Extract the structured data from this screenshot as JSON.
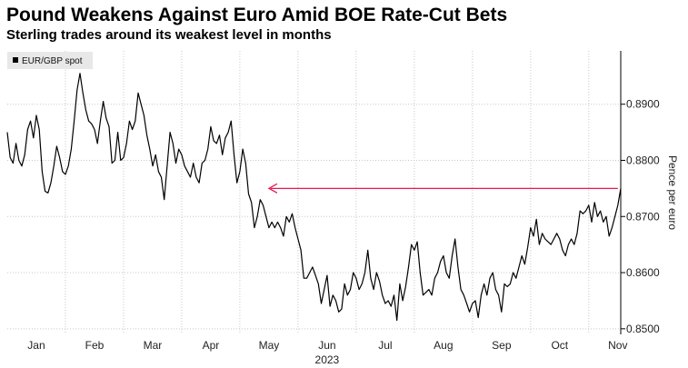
{
  "title": "Pound Weakens Against Euro Amid BOE Rate-Cut Bets",
  "subtitle": "Sterling trades around its weakest level in months",
  "chart_data": {
    "type": "line",
    "series_name": "EUR/GBP spot",
    "ylabel": "Pence per euro",
    "year_label": "2023",
    "ylim": [
      0.849,
      0.8995
    ],
    "yticks": [
      0.85,
      0.86,
      0.87,
      0.88,
      0.89
    ],
    "ytick_labels": [
      "0.8500",
      "0.8600",
      "0.8700",
      "0.8800",
      "0.8900"
    ],
    "xlim": [
      0,
      10.05
    ],
    "months": [
      "Jan",
      "Feb",
      "Mar",
      "Apr",
      "May",
      "Jun",
      "Jul",
      "Aug",
      "Sep",
      "Oct",
      "Nov"
    ],
    "colors": {
      "line": "#000000",
      "annotation_arrow": "#e8174f",
      "grid": "#c8c8c8"
    },
    "annotation": {
      "type": "arrow",
      "y": 0.875,
      "x_start": 10.0,
      "x_end": 4.0
    },
    "points": [
      [
        -0.5,
        0.885
      ],
      [
        -0.45,
        0.8805
      ],
      [
        -0.4,
        0.8795
      ],
      [
        -0.35,
        0.883
      ],
      [
        -0.3,
        0.88
      ],
      [
        -0.25,
        0.879
      ],
      [
        -0.2,
        0.881
      ],
      [
        -0.15,
        0.8855
      ],
      [
        -0.1,
        0.887
      ],
      [
        -0.05,
        0.884
      ],
      [
        0.0,
        0.888
      ],
      [
        0.05,
        0.8855
      ],
      [
        0.1,
        0.878
      ],
      [
        0.15,
        0.8745
      ],
      [
        0.2,
        0.8742
      ],
      [
        0.25,
        0.876
      ],
      [
        0.3,
        0.879
      ],
      [
        0.35,
        0.8825
      ],
      [
        0.4,
        0.8805
      ],
      [
        0.45,
        0.878
      ],
      [
        0.5,
        0.8775
      ],
      [
        0.55,
        0.879
      ],
      [
        0.6,
        0.882
      ],
      [
        0.65,
        0.887
      ],
      [
        0.7,
        0.8925
      ],
      [
        0.75,
        0.8955
      ],
      [
        0.8,
        0.892
      ],
      [
        0.85,
        0.889
      ],
      [
        0.9,
        0.887
      ],
      [
        0.95,
        0.8865
      ],
      [
        1.0,
        0.8855
      ],
      [
        1.05,
        0.883
      ],
      [
        1.1,
        0.887
      ],
      [
        1.15,
        0.8905
      ],
      [
        1.2,
        0.8875
      ],
      [
        1.25,
        0.886
      ],
      [
        1.3,
        0.8795
      ],
      [
        1.35,
        0.88
      ],
      [
        1.4,
        0.885
      ],
      [
        1.45,
        0.88
      ],
      [
        1.5,
        0.8805
      ],
      [
        1.55,
        0.883
      ],
      [
        1.6,
        0.887
      ],
      [
        1.65,
        0.8855
      ],
      [
        1.7,
        0.887
      ],
      [
        1.75,
        0.892
      ],
      [
        1.8,
        0.89
      ],
      [
        1.85,
        0.888
      ],
      [
        1.9,
        0.8845
      ],
      [
        1.95,
        0.882
      ],
      [
        2.0,
        0.879
      ],
      [
        2.05,
        0.881
      ],
      [
        2.1,
        0.878
      ],
      [
        2.15,
        0.877
      ],
      [
        2.2,
        0.873
      ],
      [
        2.25,
        0.879
      ],
      [
        2.3,
        0.885
      ],
      [
        2.35,
        0.883
      ],
      [
        2.4,
        0.8795
      ],
      [
        2.45,
        0.882
      ],
      [
        2.5,
        0.881
      ],
      [
        2.55,
        0.879
      ],
      [
        2.6,
        0.878
      ],
      [
        2.65,
        0.877
      ],
      [
        2.7,
        0.8795
      ],
      [
        2.75,
        0.877
      ],
      [
        2.8,
        0.876
      ],
      [
        2.85,
        0.8795
      ],
      [
        2.9,
        0.88
      ],
      [
        2.95,
        0.882
      ],
      [
        3.0,
        0.886
      ],
      [
        3.05,
        0.8835
      ],
      [
        3.1,
        0.883
      ],
      [
        3.15,
        0.8845
      ],
      [
        3.2,
        0.881
      ],
      [
        3.25,
        0.884
      ],
      [
        3.3,
        0.885
      ],
      [
        3.35,
        0.887
      ],
      [
        3.4,
        0.881
      ],
      [
        3.45,
        0.876
      ],
      [
        3.5,
        0.878
      ],
      [
        3.55,
        0.882
      ],
      [
        3.6,
        0.8795
      ],
      [
        3.65,
        0.874
      ],
      [
        3.7,
        0.8725
      ],
      [
        3.75,
        0.868
      ],
      [
        3.8,
        0.87
      ],
      [
        3.85,
        0.873
      ],
      [
        3.9,
        0.872
      ],
      [
        3.95,
        0.87
      ],
      [
        4.0,
        0.868
      ],
      [
        4.05,
        0.869
      ],
      [
        4.1,
        0.868
      ],
      [
        4.15,
        0.869
      ],
      [
        4.2,
        0.868
      ],
      [
        4.25,
        0.8665
      ],
      [
        4.3,
        0.87
      ],
      [
        4.35,
        0.869
      ],
      [
        4.4,
        0.8705
      ],
      [
        4.45,
        0.868
      ],
      [
        4.5,
        0.866
      ],
      [
        4.55,
        0.864
      ],
      [
        4.6,
        0.859
      ],
      [
        4.65,
        0.859
      ],
      [
        4.7,
        0.86
      ],
      [
        4.75,
        0.861
      ],
      [
        4.8,
        0.8595
      ],
      [
        4.85,
        0.858
      ],
      [
        4.9,
        0.8545
      ],
      [
        4.95,
        0.857
      ],
      [
        5.0,
        0.8595
      ],
      [
        5.05,
        0.854
      ],
      [
        5.1,
        0.856
      ],
      [
        5.15,
        0.855
      ],
      [
        5.2,
        0.853
      ],
      [
        5.25,
        0.8535
      ],
      [
        5.3,
        0.858
      ],
      [
        5.35,
        0.856
      ],
      [
        5.4,
        0.857
      ],
      [
        5.45,
        0.86
      ],
      [
        5.5,
        0.859
      ],
      [
        5.55,
        0.857
      ],
      [
        5.6,
        0.858
      ],
      [
        5.65,
        0.86
      ],
      [
        5.7,
        0.864
      ],
      [
        5.75,
        0.859
      ],
      [
        5.8,
        0.857
      ],
      [
        5.85,
        0.86
      ],
      [
        5.9,
        0.8585
      ],
      [
        5.95,
        0.856
      ],
      [
        6.0,
        0.8545
      ],
      [
        6.05,
        0.855
      ],
      [
        6.1,
        0.854
      ],
      [
        6.15,
        0.856
      ],
      [
        6.2,
        0.8515
      ],
      [
        6.25,
        0.858
      ],
      [
        6.3,
        0.855
      ],
      [
        6.35,
        0.8575
      ],
      [
        6.4,
        0.861
      ],
      [
        6.45,
        0.865
      ],
      [
        6.5,
        0.864
      ],
      [
        6.55,
        0.8655
      ],
      [
        6.6,
        0.86
      ],
      [
        6.65,
        0.856
      ],
      [
        6.7,
        0.8565
      ],
      [
        6.75,
        0.857
      ],
      [
        6.8,
        0.856
      ],
      [
        6.85,
        0.859
      ],
      [
        6.9,
        0.86
      ],
      [
        6.95,
        0.862
      ],
      [
        7.0,
        0.863
      ],
      [
        7.05,
        0.86
      ],
      [
        7.1,
        0.859
      ],
      [
        7.15,
        0.863
      ],
      [
        7.2,
        0.866
      ],
      [
        7.25,
        0.861
      ],
      [
        7.3,
        0.857
      ],
      [
        7.35,
        0.856
      ],
      [
        7.4,
        0.8545
      ],
      [
        7.45,
        0.853
      ],
      [
        7.5,
        0.8545
      ],
      [
        7.55,
        0.855
      ],
      [
        7.6,
        0.852
      ],
      [
        7.65,
        0.856
      ],
      [
        7.7,
        0.858
      ],
      [
        7.75,
        0.856
      ],
      [
        7.8,
        0.859
      ],
      [
        7.85,
        0.86
      ],
      [
        7.9,
        0.857
      ],
      [
        7.95,
        0.856
      ],
      [
        8.0,
        0.853
      ],
      [
        8.05,
        0.858
      ],
      [
        8.1,
        0.8575
      ],
      [
        8.15,
        0.858
      ],
      [
        8.2,
        0.86
      ],
      [
        8.25,
        0.859
      ],
      [
        8.3,
        0.861
      ],
      [
        8.35,
        0.863
      ],
      [
        8.4,
        0.8615
      ],
      [
        8.45,
        0.8645
      ],
      [
        8.5,
        0.868
      ],
      [
        8.55,
        0.8665
      ],
      [
        8.6,
        0.8695
      ],
      [
        8.65,
        0.865
      ],
      [
        8.7,
        0.867
      ],
      [
        8.75,
        0.866
      ],
      [
        8.8,
        0.8655
      ],
      [
        8.85,
        0.865
      ],
      [
        8.9,
        0.866
      ],
      [
        8.95,
        0.867
      ],
      [
        9.0,
        0.866
      ],
      [
        9.05,
        0.864
      ],
      [
        9.1,
        0.863
      ],
      [
        9.15,
        0.865
      ],
      [
        9.2,
        0.866
      ],
      [
        9.25,
        0.865
      ],
      [
        9.3,
        0.867
      ],
      [
        9.35,
        0.871
      ],
      [
        9.4,
        0.8705
      ],
      [
        9.45,
        0.871
      ],
      [
        9.5,
        0.872
      ],
      [
        9.55,
        0.869
      ],
      [
        9.6,
        0.8725
      ],
      [
        9.65,
        0.87
      ],
      [
        9.7,
        0.871
      ],
      [
        9.75,
        0.869
      ],
      [
        9.8,
        0.87
      ],
      [
        9.85,
        0.8665
      ],
      [
        9.9,
        0.868
      ],
      [
        9.95,
        0.87
      ],
      [
        10.0,
        0.872
      ],
      [
        10.05,
        0.875
      ]
    ]
  }
}
